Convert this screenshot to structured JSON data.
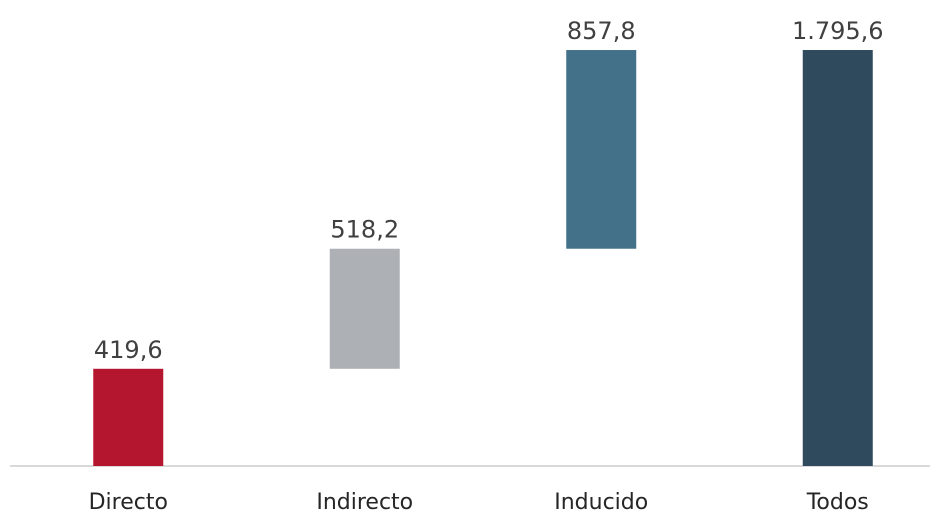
{
  "chart_data": {
    "type": "waterfall",
    "categories": [
      "Directo",
      "Indirecto",
      "Inducido",
      "Todos"
    ],
    "values": [
      419.6,
      518.2,
      857.8,
      1795.6
    ],
    "value_labels": [
      "419,6",
      "518,2",
      "857,8",
      "1.795,6"
    ],
    "measure": [
      "relative",
      "relative",
      "relative",
      "total"
    ],
    "colors": [
      "#b5162f",
      "#adb0b4",
      "#44718a",
      "#2f4a5c"
    ],
    "ylim": [
      0,
      1800
    ]
  }
}
